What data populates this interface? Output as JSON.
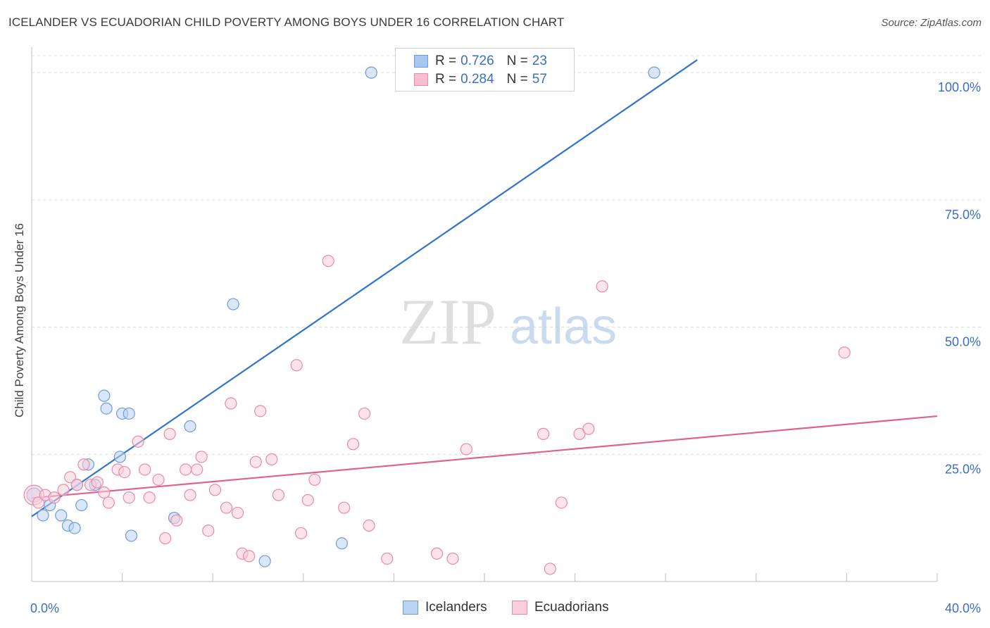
{
  "header": {
    "title": "ICELANDER VS ECUADORIAN CHILD POVERTY AMONG BOYS UNDER 16 CORRELATION CHART",
    "source": "Source: ZipAtlas.com"
  },
  "watermark": {
    "zip": "ZIP",
    "atlas": "atlas"
  },
  "legend_top": [
    {
      "r_label": "R =",
      "r_value": "0.726",
      "n_label": "N =",
      "n_value": "23",
      "color": "#a9c6f0",
      "border": "#6f9bd8"
    },
    {
      "r_label": "R =",
      "r_value": "0.284",
      "n_label": "N =",
      "n_value": "57",
      "color": "#f7c0d0",
      "border": "#e98aa8"
    }
  ],
  "legend_bottom": [
    {
      "label": "Icelanders",
      "color": "#bcd4f4",
      "border": "#6f9bd8"
    },
    {
      "label": "Ecuadorians",
      "color": "#f9cddb",
      "border": "#e98aa8"
    }
  ],
  "chart_data": {
    "type": "scatter",
    "title": "ICELANDER VS ECUADORIAN CHILD POVERTY AMONG BOYS UNDER 16 CORRELATION CHART",
    "ylabel": "Child Poverty Among Boys Under 16",
    "xlabel": "",
    "xlim": [
      0,
      40
    ],
    "ylim": [
      0,
      105
    ],
    "x_tick_labels": [
      {
        "value": 0,
        "label": "0.0%"
      },
      {
        "value": 40,
        "label": "40.0%"
      }
    ],
    "y_tick_labels": [
      {
        "value": 25,
        "label": "25.0%"
      },
      {
        "value": 50,
        "label": "50.0%"
      },
      {
        "value": 75,
        "label": "75.0%"
      },
      {
        "value": 100,
        "label": "100.0%"
      }
    ],
    "grid": "horizontal dashed",
    "legend_position": "top-center",
    "series": [
      {
        "name": "Icelanders",
        "color": "#6f9bd8",
        "fill": "#bcd4f4",
        "line_color": "#2f74cf",
        "trendline": {
          "x": [
            0,
            29.4
          ],
          "y": [
            12.8,
            102.5
          ]
        },
        "points": [
          {
            "x": 0.1,
            "y": 17.0
          },
          {
            "x": 0.5,
            "y": 13.0
          },
          {
            "x": 0.8,
            "y": 15.0
          },
          {
            "x": 1.3,
            "y": 13.0
          },
          {
            "x": 1.6,
            "y": 11.0
          },
          {
            "x": 1.9,
            "y": 10.5
          },
          {
            "x": 2.0,
            "y": 19.0
          },
          {
            "x": 2.2,
            "y": 15.0
          },
          {
            "x": 2.5,
            "y": 23.0
          },
          {
            "x": 2.8,
            "y": 19.0
          },
          {
            "x": 3.2,
            "y": 36.5
          },
          {
            "x": 3.3,
            "y": 34.0
          },
          {
            "x": 3.9,
            "y": 24.5
          },
          {
            "x": 4.0,
            "y": 33.0
          },
          {
            "x": 4.3,
            "y": 33.0
          },
          {
            "x": 4.4,
            "y": 9.0
          },
          {
            "x": 6.3,
            "y": 12.5
          },
          {
            "x": 7.0,
            "y": 30.5
          },
          {
            "x": 8.9,
            "y": 54.5
          },
          {
            "x": 10.3,
            "y": 4.0
          },
          {
            "x": 13.7,
            "y": 7.5
          },
          {
            "x": 15.0,
            "y": 100.0
          },
          {
            "x": 27.5,
            "y": 100.0
          }
        ]
      },
      {
        "name": "Ecuadorians",
        "color": "#e98aa8",
        "fill": "#f9cddb",
        "line_color": "#e0628c",
        "trendline": {
          "x": [
            0,
            40
          ],
          "y": [
            16.4,
            32.5
          ]
        },
        "points": [
          {
            "x": 0.1,
            "y": 17.0
          },
          {
            "x": 0.3,
            "y": 15.5
          },
          {
            "x": 0.6,
            "y": 17.0
          },
          {
            "x": 1.0,
            "y": 16.5
          },
          {
            "x": 1.4,
            "y": 18.0
          },
          {
            "x": 1.7,
            "y": 20.5
          },
          {
            "x": 2.0,
            "y": 19.0
          },
          {
            "x": 2.3,
            "y": 23.0
          },
          {
            "x": 2.6,
            "y": 19.0
          },
          {
            "x": 2.9,
            "y": 19.5
          },
          {
            "x": 3.2,
            "y": 17.5
          },
          {
            "x": 3.4,
            "y": 15.5
          },
          {
            "x": 3.8,
            "y": 22.0
          },
          {
            "x": 4.1,
            "y": 21.5
          },
          {
            "x": 4.3,
            "y": 16.5
          },
          {
            "x": 4.7,
            "y": 27.5
          },
          {
            "x": 5.0,
            "y": 22.0
          },
          {
            "x": 5.2,
            "y": 16.5
          },
          {
            "x": 5.6,
            "y": 20.0
          },
          {
            "x": 5.9,
            "y": 8.5
          },
          {
            "x": 6.1,
            "y": 29.0
          },
          {
            "x": 6.4,
            "y": 12.0
          },
          {
            "x": 6.8,
            "y": 22.0
          },
          {
            "x": 7.0,
            "y": 17.0
          },
          {
            "x": 7.3,
            "y": 22.0
          },
          {
            "x": 7.5,
            "y": 24.5
          },
          {
            "x": 7.8,
            "y": 10.0
          },
          {
            "x": 8.1,
            "y": 18.0
          },
          {
            "x": 8.6,
            "y": 14.5
          },
          {
            "x": 8.8,
            "y": 35.0
          },
          {
            "x": 9.1,
            "y": 13.5
          },
          {
            "x": 9.3,
            "y": 5.5
          },
          {
            "x": 9.6,
            "y": 5.0
          },
          {
            "x": 9.9,
            "y": 23.5
          },
          {
            "x": 10.1,
            "y": 33.5
          },
          {
            "x": 10.6,
            "y": 24.0
          },
          {
            "x": 10.9,
            "y": 17.0
          },
          {
            "x": 11.7,
            "y": 42.5
          },
          {
            "x": 11.9,
            "y": 9.5
          },
          {
            "x": 12.2,
            "y": 16.0
          },
          {
            "x": 12.5,
            "y": 20.0
          },
          {
            "x": 13.1,
            "y": 63.0
          },
          {
            "x": 13.8,
            "y": 14.5
          },
          {
            "x": 14.2,
            "y": 27.0
          },
          {
            "x": 14.7,
            "y": 33.0
          },
          {
            "x": 14.9,
            "y": 11.0
          },
          {
            "x": 15.7,
            "y": 4.5
          },
          {
            "x": 17.9,
            "y": 5.5
          },
          {
            "x": 18.6,
            "y": 4.5
          },
          {
            "x": 19.2,
            "y": 26.0
          },
          {
            "x": 22.6,
            "y": 29.0
          },
          {
            "x": 22.9,
            "y": 2.5
          },
          {
            "x": 23.4,
            "y": 15.5
          },
          {
            "x": 24.2,
            "y": 29.0
          },
          {
            "x": 24.6,
            "y": 30.0
          },
          {
            "x": 25.2,
            "y": 58.0
          },
          {
            "x": 35.9,
            "y": 45.0
          }
        ]
      }
    ]
  }
}
